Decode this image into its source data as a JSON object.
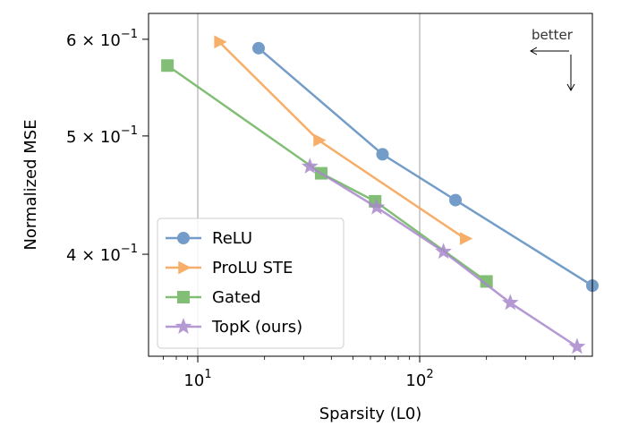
{
  "chart_data": {
    "type": "line",
    "title": "",
    "xlabel": "Sparsity (L0)",
    "ylabel": "Normalized MSE",
    "xscale": "log",
    "yscale": "log",
    "xlim": [
      6,
      600
    ],
    "ylim": [
      0.33,
      0.63
    ],
    "x_ticks": [
      {
        "value": 10,
        "base": "10",
        "exp": "1"
      },
      {
        "value": 100,
        "base": "10",
        "exp": "2"
      }
    ],
    "y_ticks": [
      {
        "value": 0.4,
        "mant": "4",
        "base": "10",
        "exp": "−1"
      },
      {
        "value": 0.5,
        "mant": "5",
        "base": "10",
        "exp": "−1"
      },
      {
        "value": 0.6,
        "mant": "6",
        "base": "10",
        "exp": "−1"
      }
    ],
    "times_symbol": "×",
    "grid": "vertical at major x ticks",
    "legend_position": "lower-left",
    "series": [
      {
        "name": "ReLU",
        "color": "#5b8dbf",
        "marker": "circle",
        "x": [
          18.8,
          68,
          145,
          600
        ],
        "y": [
          0.59,
          0.483,
          0.443,
          0.377
        ]
      },
      {
        "name": "ProLU STE",
        "color": "#f5a04e",
        "marker": "triangle-right",
        "x": [
          12.5,
          35,
          160
        ],
        "y": [
          0.597,
          0.496,
          0.412
        ]
      },
      {
        "name": "Gated",
        "color": "#6db35f",
        "marker": "square",
        "x": [
          7.3,
          36,
          63,
          200
        ],
        "y": [
          0.571,
          0.466,
          0.442,
          0.38
        ]
      },
      {
        "name": "TopK (ours)",
        "color": "#a888cc",
        "marker": "star",
        "x": [
          32,
          64,
          128,
          256,
          512
        ],
        "y": [
          0.472,
          0.437,
          0.402,
          0.365,
          0.336
        ]
      }
    ],
    "annotation": {
      "text": "better"
    }
  }
}
